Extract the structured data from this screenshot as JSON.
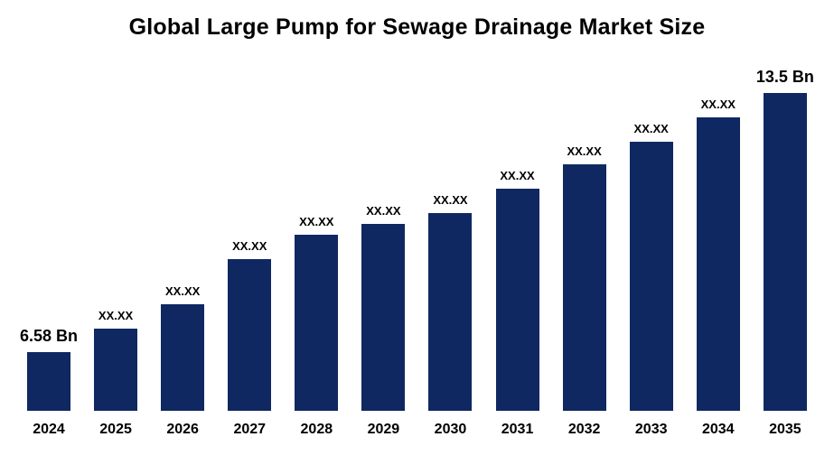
{
  "chart_data": {
    "type": "bar",
    "title": "Global Large Pump for Sewage Drainage Market Size",
    "categories": [
      "2024",
      "2025",
      "2026",
      "2027",
      "2028",
      "2029",
      "2030",
      "2031",
      "2032",
      "2033",
      "2034",
      "2035"
    ],
    "values": [
      6.58,
      7.2,
      7.85,
      9.05,
      9.7,
      10.0,
      10.3,
      10.95,
      11.6,
      12.2,
      12.85,
      13.5
    ],
    "data_labels": [
      "6.58 Bn",
      "XX.XX",
      "XX.XX",
      "XX.XX",
      "XX.XX",
      "XX.XX",
      "XX.XX",
      "XX.XX",
      "XX.XX",
      "XX.XX",
      "XX.XX",
      "13.5 Bn"
    ],
    "unit": "Bn",
    "first_value_label": "6.58 Bn",
    "last_value_label": "13.5 Bn",
    "bar_color": "#0f2862",
    "text_color": "#000000",
    "background_color": "#ffffff",
    "ylim": [
      5,
      13.5
    ],
    "grid": false,
    "legend": false,
    "xlabel": "",
    "ylabel": ""
  }
}
